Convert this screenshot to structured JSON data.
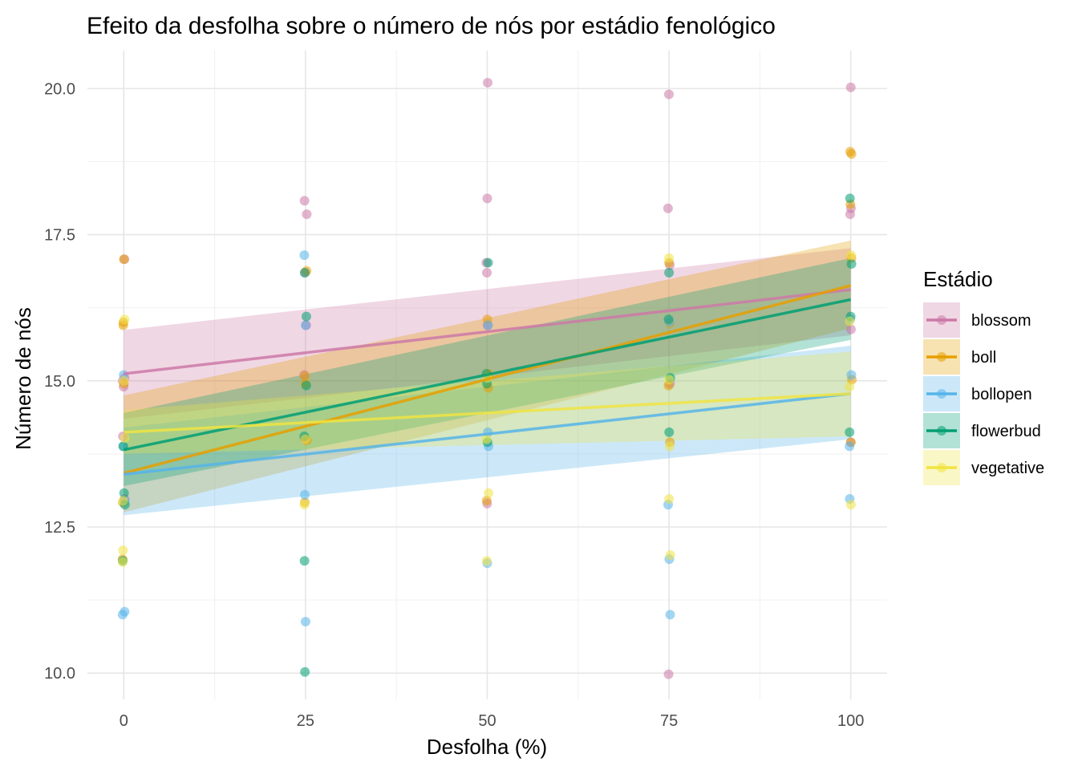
{
  "chart_data": {
    "type": "scatter",
    "title": "Efeito da desfolha sobre o número de nós por estádio fenológico",
    "xlabel": "Desfolha (%)",
    "ylabel": "Número de nós",
    "xlim": [
      -5,
      105
    ],
    "ylim": [
      9.55,
      20.65
    ],
    "x_ticks": [
      0,
      25,
      50,
      75,
      100
    ],
    "x_tick_labels": [
      "0",
      "25",
      "50",
      "75",
      "100"
    ],
    "y_ticks": [
      10,
      12.5,
      15,
      17.5,
      20
    ],
    "y_tick_labels": [
      "10.0",
      "12.5",
      "15.0",
      "17.5",
      "20.0"
    ],
    "grid": true,
    "legend_title": "Estádio",
    "legend_position": "right",
    "series": [
      {
        "name": "blossom",
        "color": "#CC79A7",
        "fit": {
          "intercept": 15.12,
          "slope": 0.0144
        },
        "band": [
          {
            "x": 0,
            "lower": 14.35,
            "upper": 15.87
          },
          {
            "x": 100,
            "lower": 15.78,
            "upper": 17.27
          }
        ],
        "points": [
          [
            0,
            17.08
          ],
          [
            0,
            15.0
          ],
          [
            0,
            14.9
          ],
          [
            0,
            15.05
          ],
          [
            0,
            14.05
          ],
          [
            0,
            12.98
          ],
          [
            25,
            18.08
          ],
          [
            25,
            17.85
          ],
          [
            25,
            16.85
          ],
          [
            25,
            15.95
          ],
          [
            25,
            15.1
          ],
          [
            25,
            14.0
          ],
          [
            50,
            20.1
          ],
          [
            50,
            18.12
          ],
          [
            50,
            17.02
          ],
          [
            50,
            16.85
          ],
          [
            50,
            15.95
          ],
          [
            50,
            12.9
          ],
          [
            75,
            19.9
          ],
          [
            75,
            17.95
          ],
          [
            75,
            16.98
          ],
          [
            75,
            14.95
          ],
          [
            75,
            9.98
          ],
          [
            100,
            20.02
          ],
          [
            100,
            17.95
          ],
          [
            100,
            17.85
          ],
          [
            100,
            15.88
          ],
          [
            100,
            13.95
          ]
        ]
      },
      {
        "name": "boll",
        "color": "#E69F00",
        "fit": {
          "intercept": 13.42,
          "slope": 0.0321
        },
        "band": [
          {
            "x": 0,
            "lower": 12.75,
            "upper": 14.75
          },
          {
            "x": 100,
            "lower": 15.9,
            "upper": 17.4
          }
        ],
        "points": [
          [
            0,
            17.08
          ],
          [
            0,
            16.0
          ],
          [
            0,
            15.95
          ],
          [
            0,
            14.95
          ],
          [
            0,
            12.92
          ],
          [
            0,
            11.95
          ],
          [
            25,
            16.88
          ],
          [
            25,
            15.08
          ],
          [
            25,
            14.95
          ],
          [
            25,
            13.98
          ],
          [
            25,
            12.92
          ],
          [
            50,
            16.05
          ],
          [
            50,
            15.12
          ],
          [
            50,
            14.88
          ],
          [
            50,
            12.95
          ],
          [
            75,
            17.02
          ],
          [
            75,
            15.98
          ],
          [
            75,
            14.92
          ],
          [
            75,
            13.95
          ],
          [
            100,
            18.92
          ],
          [
            100,
            18.88
          ],
          [
            100,
            18.02
          ],
          [
            100,
            17.1
          ],
          [
            100,
            15.02
          ],
          [
            100,
            13.95
          ]
        ]
      },
      {
        "name": "bollopen",
        "color": "#56B4E9",
        "fit": {
          "intercept": 13.4,
          "slope": 0.0138
        },
        "band": [
          {
            "x": 0,
            "lower": 12.7,
            "upper": 14.2
          },
          {
            "x": 100,
            "lower": 14.0,
            "upper": 15.6
          }
        ],
        "points": [
          [
            0,
            15.1
          ],
          [
            0,
            13.88
          ],
          [
            0,
            12.95
          ],
          [
            0,
            11.0
          ],
          [
            0,
            11.05
          ],
          [
            25,
            17.15
          ],
          [
            25,
            15.95
          ],
          [
            25,
            13.05
          ],
          [
            25,
            10.88
          ],
          [
            50,
            15.95
          ],
          [
            50,
            14.12
          ],
          [
            50,
            13.88
          ],
          [
            50,
            11.88
          ],
          [
            75,
            16.0
          ],
          [
            75,
            12.88
          ],
          [
            75,
            11.95
          ],
          [
            75,
            11.0
          ],
          [
            100,
            16.05
          ],
          [
            100,
            15.1
          ],
          [
            100,
            13.88
          ],
          [
            100,
            12.98
          ]
        ]
      },
      {
        "name": "flowerbud",
        "color": "#009E73",
        "fit": {
          "intercept": 13.82,
          "slope": 0.0257
        },
        "band": [
          {
            "x": 0,
            "lower": 13.2,
            "upper": 14.45
          },
          {
            "x": 100,
            "lower": 15.7,
            "upper": 17.1
          }
        ],
        "points": [
          [
            0,
            13.88
          ],
          [
            0,
            12.88
          ],
          [
            0,
            13.08
          ],
          [
            0,
            11.92
          ],
          [
            25,
            16.85
          ],
          [
            25,
            16.1
          ],
          [
            25,
            14.92
          ],
          [
            25,
            14.05
          ],
          [
            25,
            11.92
          ],
          [
            25,
            10.02
          ],
          [
            50,
            17.02
          ],
          [
            50,
            15.12
          ],
          [
            50,
            14.95
          ],
          [
            50,
            13.95
          ],
          [
            75,
            16.85
          ],
          [
            75,
            16.05
          ],
          [
            75,
            15.05
          ],
          [
            75,
            14.12
          ],
          [
            100,
            18.12
          ],
          [
            100,
            17.0
          ],
          [
            100,
            16.1
          ],
          [
            100,
            14.12
          ]
        ]
      },
      {
        "name": "vegetative",
        "color": "#F0E442",
        "fit": {
          "intercept": 14.12,
          "slope": 0.0066
        },
        "band": [
          {
            "x": 0,
            "lower": 13.75,
            "upper": 14.5
          },
          {
            "x": 100,
            "lower": 14.05,
            "upper": 15.5
          }
        ],
        "points": [
          [
            0,
            16.05
          ],
          [
            0,
            15.0
          ],
          [
            0,
            14.02
          ],
          [
            0,
            12.95
          ],
          [
            0,
            12.1
          ],
          [
            0,
            11.9
          ],
          [
            25,
            14.0
          ],
          [
            25,
            12.88
          ],
          [
            50,
            15.05
          ],
          [
            50,
            14.0
          ],
          [
            50,
            13.08
          ],
          [
            50,
            11.92
          ],
          [
            75,
            17.1
          ],
          [
            75,
            15.02
          ],
          [
            75,
            13.88
          ],
          [
            75,
            12.98
          ],
          [
            75,
            12.02
          ],
          [
            100,
            17.15
          ],
          [
            100,
            16.02
          ],
          [
            100,
            14.9
          ],
          [
            100,
            12.88
          ]
        ]
      }
    ]
  }
}
